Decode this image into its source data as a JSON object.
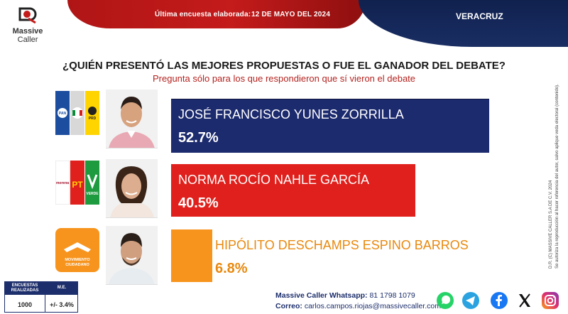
{
  "header": {
    "brand_line1": "Massive",
    "brand_line2": "Caller",
    "survey_label": "Última encuesta elaborada:",
    "survey_date": "12 DE MAYO DEL 2024",
    "place": "VERACRUZ"
  },
  "question": "¿QUIÉN PRESENTÓ LAS MEJORES PROPUESTAS O FUE EL GANADOR DEL DEBATE?",
  "subquestion": "Pregunta sólo para los que respondieron que sí vieron el debate",
  "chart_data": {
    "type": "bar",
    "orientation": "horizontal",
    "categories": [
      "JOSÉ FRANCISCO YUNES ZORRILLA",
      "NORMA ROCÍO NAHLE GARCÍA",
      "HIPÓLITO DESCHAMPS ESPINO BARROS"
    ],
    "values": [
      52.7,
      40.5,
      6.8
    ],
    "value_labels": [
      "52.7%",
      "40.5%",
      "6.8%"
    ],
    "colors": [
      "#1c2a6e",
      "#e0201c",
      "#f7941d"
    ],
    "text_colors": [
      "#ffffff",
      "#ffffff",
      "#e8890f"
    ],
    "party_logos": [
      {
        "icon": "pan-pri-prd-coalition-icon",
        "labels": [
          "PAN",
          "PRI",
          "PRD"
        ]
      },
      {
        "icon": "morena-pt-verde-coalition-icon",
        "labels": [
          "morena",
          "PT",
          "VERDE"
        ]
      },
      {
        "icon": "movimiento-ciudadano-icon",
        "labels": [
          "MOVIMIENTO",
          "CIUDADANO"
        ]
      }
    ],
    "title": "¿QUIÉN PRESENTÓ LAS MEJORES PROPUESTAS O FUE EL GANADOR DEL DEBATE?",
    "xlabel": "",
    "ylabel": ""
  },
  "side_note_line1": "D.R. (C) MASSIVE CALLER S.A DE C.V. 2024",
  "side_note_line2": "Se autoriza la reproducción al hacer referencia del autor, salvo aplique veda electoral (contenido).",
  "stats": {
    "header1": "ENCUESTAS REALIZADAS",
    "header2": "M.E.",
    "value1": "1000",
    "value2": "+/- 3.4%"
  },
  "footer": {
    "whatsapp_label": "Massive Caller Whatsapp:",
    "whatsapp_number": "81 1798 1079",
    "email_label": "Correo:",
    "email": "carlos.campos.riojas@massivecaller.com"
  },
  "social_icons": [
    "whatsapp-icon",
    "telegram-icon",
    "facebook-icon",
    "x-icon",
    "instagram-icon"
  ]
}
